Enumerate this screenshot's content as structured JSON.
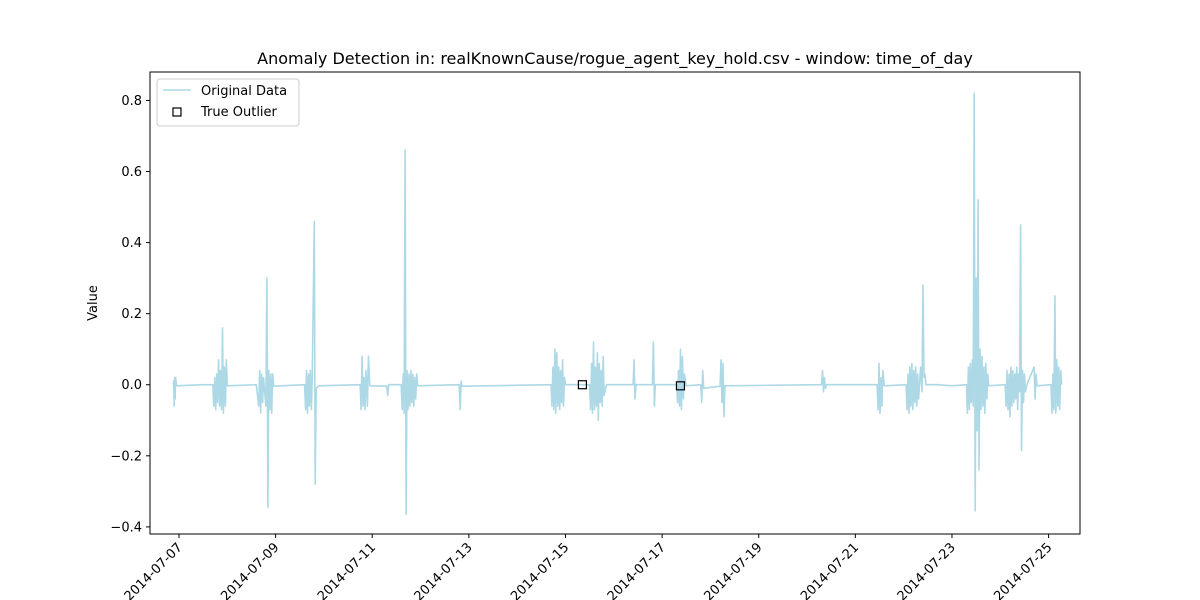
{
  "chart_data": {
    "type": "line",
    "title": "Anomaly Detection in: realKnownCause/rogue_agent_key_hold.csv - window: time_of_day",
    "xlabel": "",
    "ylabel": "Value",
    "xlim": [
      6.4,
      25.65
    ],
    "ylim": [
      -0.42,
      0.88
    ],
    "x_unit": "day of July 2014",
    "x_ticks": [
      7,
      9,
      11,
      13,
      15,
      17,
      19,
      21,
      23,
      25
    ],
    "x_tick_labels": [
      "2014-07-07",
      "2014-07-09",
      "2014-07-11",
      "2014-07-13",
      "2014-07-15",
      "2014-07-17",
      "2014-07-19",
      "2014-07-21",
      "2014-07-23",
      "2014-07-25"
    ],
    "y_ticks": [
      -0.4,
      -0.2,
      0.0,
      0.2,
      0.4,
      0.6,
      0.8
    ],
    "y_tick_labels": [
      "−0.4",
      "−0.2",
      "0.0",
      "0.2",
      "0.4",
      "0.6",
      "0.8"
    ],
    "legend_position": "top-left",
    "series": [
      {
        "name": "Original Data",
        "kind": "line",
        "color": "#add8e6",
        "points": [
          [
            6.88,
            0.0
          ],
          [
            6.89,
            0.01
          ],
          [
            6.9,
            -0.06
          ],
          [
            6.91,
            0.02
          ],
          [
            6.92,
            -0.04
          ],
          [
            6.93,
            0.02
          ],
          [
            6.95,
            -0.003
          ],
          [
            7.5,
            0.0
          ],
          [
            7.7,
            0.0
          ],
          [
            7.72,
            -0.06
          ],
          [
            7.74,
            0.02
          ],
          [
            7.76,
            -0.07
          ],
          [
            7.78,
            0.03
          ],
          [
            7.8,
            -0.05
          ],
          [
            7.82,
            0.07
          ],
          [
            7.84,
            -0.06
          ],
          [
            7.86,
            0.04
          ],
          [
            7.88,
            -0.07
          ],
          [
            7.9,
            0.16
          ],
          [
            7.92,
            -0.08
          ],
          [
            7.94,
            0.05
          ],
          [
            7.96,
            -0.06
          ],
          [
            7.98,
            0.07
          ],
          [
            8.0,
            -0.003
          ],
          [
            8.6,
            0.0
          ],
          [
            8.65,
            -0.06
          ],
          [
            8.67,
            0.04
          ],
          [
            8.69,
            -0.08
          ],
          [
            8.71,
            0.03
          ],
          [
            8.73,
            -0.05
          ],
          [
            8.75,
            0.02
          ],
          [
            8.8,
            -0.06
          ],
          [
            8.82,
            0.3
          ],
          [
            8.84,
            -0.345
          ],
          [
            8.86,
            0.04
          ],
          [
            8.88,
            -0.07
          ],
          [
            8.9,
            0.03
          ],
          [
            8.92,
            -0.08
          ],
          [
            8.94,
            0.03
          ],
          [
            8.96,
            -0.004
          ],
          [
            9.6,
            0.0
          ],
          [
            9.62,
            -0.07
          ],
          [
            9.64,
            0.04
          ],
          [
            9.66,
            -0.08
          ],
          [
            9.68,
            0.03
          ],
          [
            9.7,
            -0.06
          ],
          [
            9.72,
            0.04
          ],
          [
            9.74,
            -0.07
          ],
          [
            9.76,
            0.03
          ],
          [
            9.8,
            0.46
          ],
          [
            9.82,
            -0.28
          ],
          [
            9.84,
            -0.01
          ],
          [
            9.9,
            -0.003
          ],
          [
            10.75,
            0.0
          ],
          [
            10.77,
            -0.07
          ],
          [
            10.79,
            0.08
          ],
          [
            10.81,
            -0.06
          ],
          [
            10.83,
            0.02
          ],
          [
            10.85,
            -0.07
          ],
          [
            10.87,
            0.04
          ],
          [
            10.9,
            -0.06
          ],
          [
            10.92,
            0.08
          ],
          [
            10.95,
            -0.003
          ],
          [
            11.3,
            -0.004
          ],
          [
            11.32,
            -0.03
          ],
          [
            11.34,
            0.0
          ],
          [
            11.6,
            0.0
          ],
          [
            11.62,
            -0.07
          ],
          [
            11.64,
            0.03
          ],
          [
            11.66,
            -0.08
          ],
          [
            11.68,
            0.66
          ],
          [
            11.7,
            -0.365
          ],
          [
            11.72,
            0.04
          ],
          [
            11.74,
            -0.07
          ],
          [
            11.76,
            0.03
          ],
          [
            11.78,
            -0.06
          ],
          [
            11.8,
            0.04
          ],
          [
            11.82,
            -0.05
          ],
          [
            11.84,
            0.03
          ],
          [
            11.86,
            -0.06
          ],
          [
            11.88,
            0.02
          ],
          [
            11.9,
            -0.04
          ],
          [
            11.92,
            0.03
          ],
          [
            11.94,
            -0.003
          ],
          [
            12.8,
            0.0
          ],
          [
            12.82,
            -0.07
          ],
          [
            12.84,
            0.01
          ],
          [
            12.86,
            -0.004
          ],
          [
            14.7,
            0.0
          ],
          [
            14.72,
            -0.06
          ],
          [
            14.74,
            0.05
          ],
          [
            14.76,
            -0.07
          ],
          [
            14.78,
            0.1
          ],
          [
            14.8,
            -0.08
          ],
          [
            14.82,
            0.09
          ],
          [
            14.84,
            -0.06
          ],
          [
            14.86,
            0.05
          ],
          [
            14.88,
            -0.07
          ],
          [
            14.9,
            0.04
          ],
          [
            14.92,
            -0.05
          ],
          [
            14.94,
            0.07
          ],
          [
            14.96,
            -0.06
          ],
          [
            14.98,
            0.02
          ],
          [
            15.0,
            0.0
          ],
          [
            15.5,
            0.0
          ],
          [
            15.52,
            -0.07
          ],
          [
            15.54,
            0.06
          ],
          [
            15.56,
            -0.08
          ],
          [
            15.58,
            0.12
          ],
          [
            15.6,
            -0.07
          ],
          [
            15.62,
            0.05
          ],
          [
            15.64,
            -0.06
          ],
          [
            15.66,
            0.09
          ],
          [
            15.68,
            -0.1
          ],
          [
            15.7,
            0.06
          ],
          [
            15.72,
            -0.05
          ],
          [
            15.74,
            0.04
          ],
          [
            15.76,
            -0.06
          ],
          [
            15.78,
            0.08
          ],
          [
            15.8,
            -0.03
          ],
          [
            15.85,
            0.0
          ],
          [
            16.4,
            0.0
          ],
          [
            16.42,
            0.07
          ],
          [
            16.44,
            -0.04
          ],
          [
            16.46,
            0.0
          ],
          [
            16.8,
            0.0
          ],
          [
            16.82,
            0.12
          ],
          [
            16.84,
            -0.06
          ],
          [
            16.86,
            0.0
          ],
          [
            17.3,
            0.0
          ],
          [
            17.32,
            -0.05
          ],
          [
            17.34,
            0.04
          ],
          [
            17.36,
            -0.06
          ],
          [
            17.38,
            0.1
          ],
          [
            17.4,
            -0.07
          ],
          [
            17.42,
            0.08
          ],
          [
            17.44,
            -0.04
          ],
          [
            17.46,
            0.03
          ],
          [
            17.5,
            -0.003
          ],
          [
            17.8,
            0.0
          ],
          [
            17.82,
            -0.05
          ],
          [
            17.84,
            0.04
          ],
          [
            17.86,
            -0.01
          ],
          [
            18.2,
            -0.004
          ],
          [
            18.22,
            0.07
          ],
          [
            18.24,
            -0.05
          ],
          [
            18.26,
            0.06
          ],
          [
            18.28,
            -0.09
          ],
          [
            18.3,
            -0.003
          ],
          [
            20.3,
            0.0
          ],
          [
            20.32,
            0.04
          ],
          [
            20.34,
            -0.02
          ],
          [
            20.36,
            0.02
          ],
          [
            20.38,
            -0.01
          ],
          [
            20.4,
            0.0
          ],
          [
            21.45,
            0.0
          ],
          [
            21.47,
            -0.07
          ],
          [
            21.49,
            0.06
          ],
          [
            21.51,
            -0.08
          ],
          [
            21.53,
            0.02
          ],
          [
            21.55,
            -0.06
          ],
          [
            21.57,
            0.04
          ],
          [
            21.6,
            -0.003
          ],
          [
            22.05,
            0.0
          ],
          [
            22.07,
            -0.07
          ],
          [
            22.09,
            0.03
          ],
          [
            22.11,
            -0.08
          ],
          [
            22.13,
            0.05
          ],
          [
            22.15,
            -0.06
          ],
          [
            22.17,
            0.06
          ],
          [
            22.19,
            -0.07
          ],
          [
            22.21,
            0.04
          ],
          [
            22.23,
            -0.05
          ],
          [
            22.25,
            0.05
          ],
          [
            22.27,
            -0.06
          ],
          [
            22.29,
            0.03
          ],
          [
            22.31,
            -0.04
          ],
          [
            22.35,
            0.05
          ],
          [
            22.38,
            -0.02
          ],
          [
            22.4,
            0.28
          ],
          [
            22.42,
            0.02
          ],
          [
            22.44,
            0.03
          ],
          [
            22.46,
            0.0
          ],
          [
            22.6,
            0.0
          ],
          [
            22.7,
            0.0
          ],
          [
            23.0,
            -0.003
          ],
          [
            23.3,
            0.0
          ],
          [
            23.32,
            -0.08
          ],
          [
            23.34,
            0.05
          ],
          [
            23.36,
            -0.07
          ],
          [
            23.38,
            0.06
          ],
          [
            23.4,
            -0.05
          ],
          [
            23.42,
            0.07
          ],
          [
            23.44,
            -0.06
          ],
          [
            23.46,
            0.82
          ],
          [
            23.48,
            -0.355
          ],
          [
            23.5,
            0.3
          ],
          [
            23.52,
            -0.13
          ],
          [
            23.54,
            0.52
          ],
          [
            23.56,
            -0.24
          ],
          [
            23.58,
            0.1
          ],
          [
            23.6,
            -0.07
          ],
          [
            23.62,
            0.08
          ],
          [
            23.64,
            -0.06
          ],
          [
            23.66,
            0.05
          ],
          [
            23.68,
            -0.08
          ],
          [
            23.7,
            0.06
          ],
          [
            23.72,
            -0.04
          ],
          [
            23.74,
            0.03
          ],
          [
            23.76,
            -0.003
          ],
          [
            24.1,
            0.0
          ],
          [
            24.12,
            -0.06
          ],
          [
            24.14,
            0.04
          ],
          [
            24.16,
            -0.07
          ],
          [
            24.18,
            0.03
          ],
          [
            24.2,
            -0.09
          ],
          [
            24.22,
            0.05
          ],
          [
            24.24,
            -0.06
          ],
          [
            24.26,
            0.04
          ],
          [
            24.28,
            -0.05
          ],
          [
            24.3,
            0.03
          ],
          [
            24.32,
            -0.04
          ],
          [
            24.34,
            0.05
          ],
          [
            24.36,
            -0.07
          ],
          [
            24.38,
            0.03
          ],
          [
            24.4,
            -0.02
          ],
          [
            24.42,
            0.45
          ],
          [
            24.44,
            -0.185
          ],
          [
            24.46,
            0.04
          ],
          [
            24.48,
            -0.05
          ],
          [
            24.5,
            0.03
          ],
          [
            24.52,
            -0.02
          ],
          [
            24.55,
            0.0
          ],
          [
            24.7,
            0.05
          ],
          [
            24.72,
            -0.04
          ],
          [
            24.74,
            0.03
          ],
          [
            24.76,
            -0.003
          ],
          [
            25.05,
            0.0
          ],
          [
            25.07,
            -0.08
          ],
          [
            25.09,
            0.03
          ],
          [
            25.11,
            -0.07
          ],
          [
            25.13,
            0.25
          ],
          [
            25.15,
            -0.08
          ],
          [
            25.17,
            0.07
          ],
          [
            25.19,
            -0.06
          ],
          [
            25.21,
            0.05
          ],
          [
            25.23,
            -0.07
          ],
          [
            25.25,
            0.04
          ],
          [
            25.27,
            0.0
          ]
        ]
      },
      {
        "name": "True Outlier",
        "kind": "scatter",
        "marker": "square",
        "color": "#000000",
        "points": [
          [
            15.35,
            0.0
          ],
          [
            17.38,
            -0.003
          ]
        ]
      }
    ]
  }
}
